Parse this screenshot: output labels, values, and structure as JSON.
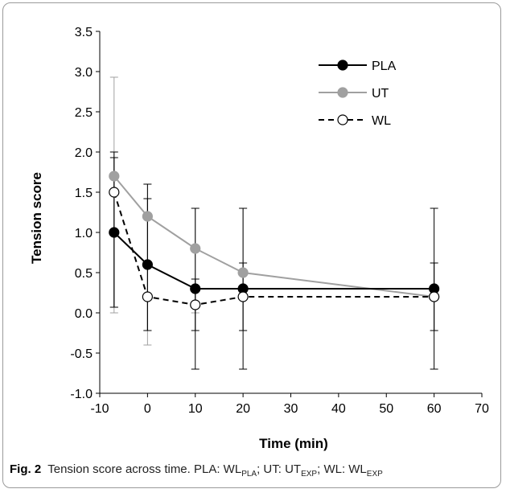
{
  "chart_data": {
    "type": "line",
    "xlabel": "Time (min)",
    "ylabel": "Tension score",
    "xlim": [
      -10,
      70
    ],
    "ylim": [
      -1.0,
      3.5
    ],
    "xticks": [
      -10,
      0,
      10,
      20,
      30,
      40,
      50,
      60,
      70
    ],
    "yticks": [
      -1.0,
      -0.5,
      0.0,
      0.5,
      1.0,
      1.5,
      2.0,
      2.5,
      3.0,
      3.5
    ],
    "xtick_labels": [
      "-10",
      "0",
      "10",
      "20",
      "30",
      "40",
      "50",
      "60",
      "70"
    ],
    "ytick_labels": [
      "-1.0",
      "-0.5",
      "0.0",
      "0.5",
      "1.0",
      "1.5",
      "2.0",
      "2.5",
      "3.0",
      "3.5"
    ],
    "x": [
      -7,
      0,
      10,
      20,
      60
    ],
    "grid": false,
    "legend_position": "top-right",
    "series": [
      {
        "name": "PLA",
        "values": [
          1.0,
          0.6,
          0.3,
          0.3,
          0.3
        ],
        "error_low": [
          0.07,
          -0.22,
          -0.7,
          -0.7,
          -0.7
        ],
        "error_high": [
          1.93,
          1.42,
          1.3,
          1.3,
          1.3
        ],
        "color": "#000000",
        "marker": "filled-circle",
        "line_style": "solid"
      },
      {
        "name": "UT",
        "values": [
          1.7,
          1.2,
          0.8,
          0.5,
          0.2
        ],
        "error_low": [
          0.0,
          -0.4,
          0.0,
          -0.22,
          -0.22
        ],
        "error_high": [
          2.93,
          1.6,
          1.3,
          1.3,
          0.62
        ],
        "color": "#a0a0a0",
        "marker": "filled-circle",
        "line_style": "solid"
      },
      {
        "name": "WL",
        "values": [
          1.5,
          0.2,
          0.1,
          0.2,
          0.2
        ],
        "error_low": [
          0.07,
          -0.22,
          -0.22,
          -0.22,
          -0.22
        ],
        "error_high": [
          2.0,
          1.6,
          0.42,
          0.62,
          0.62
        ],
        "color": "#000000",
        "marker": "open-circle",
        "line_style": "dashed"
      }
    ]
  },
  "caption": {
    "fig_label": "Fig. 2",
    "text": "Tension score across time. PLA: WL",
    "sub_pla": "PLA",
    "sep1": "; UT: UT",
    "sub_ut": "EXP",
    "sep2": "; WL: WL",
    "sub_wl": "EXP"
  }
}
